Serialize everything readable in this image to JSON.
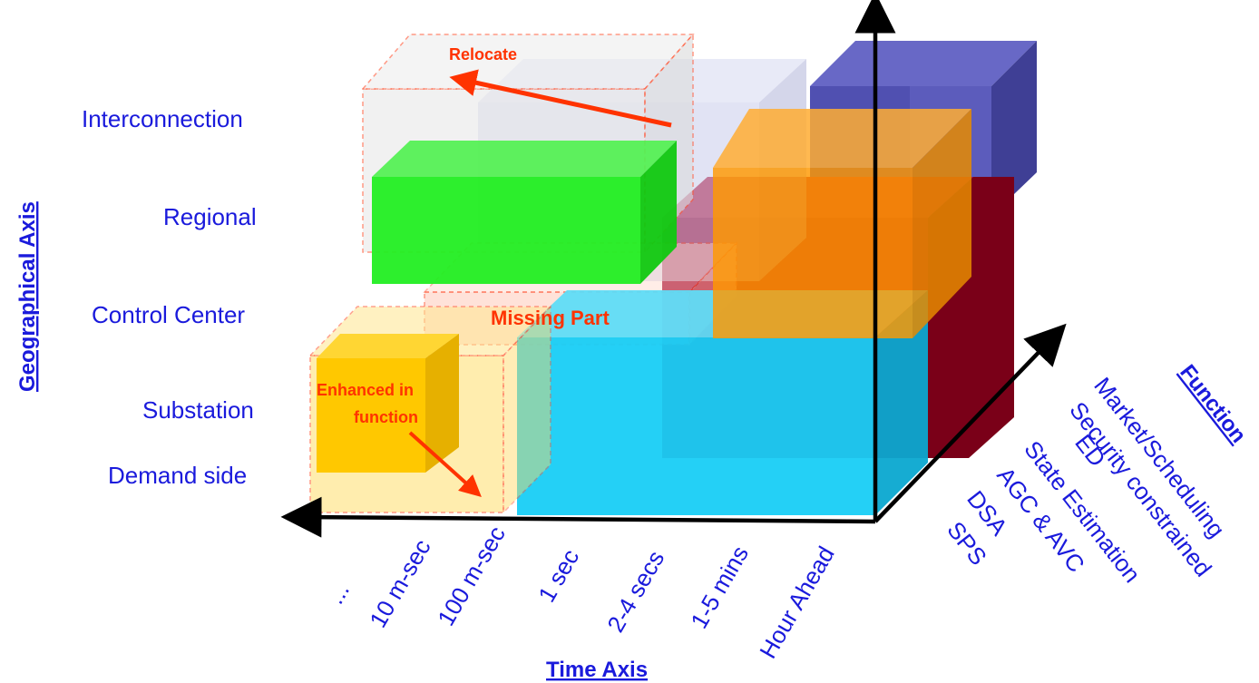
{
  "geographical_axis": {
    "title": "Geographical Axis",
    "levels": [
      "Interconnection",
      "Regional",
      "Control Center",
      "Substation",
      "Demand side"
    ]
  },
  "time_axis": {
    "title": "Time Axis",
    "ticks": [
      "...",
      "10 m-sec",
      "100 m-sec",
      "1 sec",
      "2-4 secs",
      "1-5 mins",
      "Hour Ahead"
    ]
  },
  "function_axis": {
    "title": "Function",
    "items": [
      "SPS",
      "DSA",
      "AGC & AVC",
      "State Estimation",
      "ED",
      "Security constrained",
      "Market/Scheduling"
    ]
  },
  "annotations": {
    "relocate": "Relocate",
    "missing_part": "Missing Part",
    "enhanced_line1": "Enhanced in",
    "enhanced_line2": "function"
  },
  "colors": {
    "label_blue": "#1a1adc",
    "annotation_red": "#ff3300",
    "green_box": "#22ee22",
    "cyan_box": "#11ccf5",
    "orange_box": "#ff9900",
    "navy_box": "#3a3aa0",
    "crimson_box": "#a00020",
    "yellow_box": "#ffcc00"
  }
}
